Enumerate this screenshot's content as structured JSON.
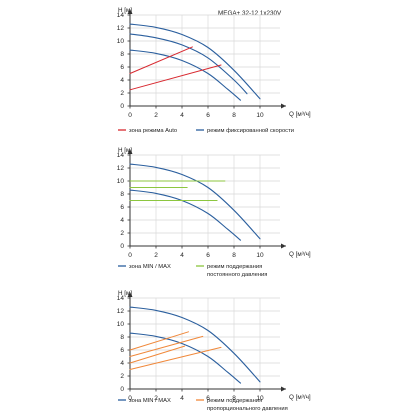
{
  "title": "MEGA+ 32-12 1x230V",
  "colors": {
    "curve": "#2b5f9e",
    "auto": "#d8282f",
    "const": "#8cc63f",
    "prop": "#f0883a",
    "grid": "#d9d9d9",
    "axis": "#333333"
  },
  "chart_data": [
    {
      "type": "line",
      "ylabel": "H [м]",
      "xlabel": "Q [м³/ч]",
      "xlim": [
        0,
        12
      ],
      "ylim": [
        0,
        14
      ],
      "xticks": [
        0,
        2,
        4,
        6,
        8,
        10
      ],
      "yticks": [
        0,
        2,
        4,
        6,
        8,
        10,
        12,
        14
      ],
      "grid": true,
      "series": [
        {
          "role": "curve",
          "points": [
            [
              0,
              12.6
            ],
            [
              2,
              12.1
            ],
            [
              4,
              11.0
            ],
            [
              6,
              9.0
            ],
            [
              8,
              5.5
            ],
            [
              10,
              1.1
            ]
          ]
        },
        {
          "role": "curve",
          "points": [
            [
              0,
              11.1
            ],
            [
              2,
              10.5
            ],
            [
              4,
              9.4
            ],
            [
              6,
              7.4
            ],
            [
              8,
              4.0
            ],
            [
              9,
              1.9
            ]
          ]
        },
        {
          "role": "curve",
          "points": [
            [
              0,
              8.6
            ],
            [
              2,
              8.1
            ],
            [
              4,
              7.0
            ],
            [
              6,
              5.0
            ],
            [
              7.5,
              2.6
            ],
            [
              8.5,
              0.9
            ]
          ]
        },
        {
          "role": "auto",
          "points": [
            [
              0,
              5.0
            ],
            [
              4.8,
              9.1
            ]
          ]
        },
        {
          "role": "auto",
          "points": [
            [
              0,
              2.5
            ],
            [
              7,
              6.3
            ]
          ]
        }
      ],
      "legend": [
        {
          "role": "auto",
          "label": "зона режима Auto"
        },
        {
          "role": "curve",
          "label": "режим фиксированной скорости"
        }
      ]
    },
    {
      "type": "line",
      "ylabel": "H [м]",
      "xlabel": "Q [м³/ч]",
      "xlim": [
        0,
        12
      ],
      "ylim": [
        0,
        14
      ],
      "xticks": [
        0,
        2,
        4,
        6,
        8,
        10
      ],
      "yticks": [
        0,
        2,
        4,
        6,
        8,
        10,
        12,
        14
      ],
      "grid": true,
      "series": [
        {
          "role": "curve",
          "points": [
            [
              0,
              12.6
            ],
            [
              2,
              12.1
            ],
            [
              4,
              11.0
            ],
            [
              6,
              9.0
            ],
            [
              8,
              5.5
            ],
            [
              10,
              1.1
            ]
          ]
        },
        {
          "role": "curve",
          "points": [
            [
              0,
              8.6
            ],
            [
              2,
              8.1
            ],
            [
              4,
              7.0
            ],
            [
              6,
              5.0
            ],
            [
              7.5,
              2.6
            ],
            [
              8.5,
              0.9
            ]
          ]
        },
        {
          "role": "const",
          "points": [
            [
              0,
              10
            ],
            [
              7.3,
              10
            ]
          ]
        },
        {
          "role": "const",
          "points": [
            [
              0,
              9
            ],
            [
              4.4,
              9
            ]
          ]
        },
        {
          "role": "const",
          "points": [
            [
              0,
              7
            ],
            [
              6.7,
              7
            ]
          ]
        }
      ],
      "legend": [
        {
          "role": "curve",
          "label": "зона MIN / MAX"
        },
        {
          "role": "const",
          "label": "режим поддержания",
          "label2": "постоянного давления"
        }
      ]
    },
    {
      "type": "line",
      "ylabel": "H [м]",
      "xlabel": "Q [м³/ч]",
      "xlim": [
        0,
        12
      ],
      "ylim": [
        0,
        14
      ],
      "xticks": [
        0,
        2,
        4,
        6,
        8,
        10
      ],
      "yticks": [
        0,
        2,
        4,
        6,
        8,
        10,
        12,
        14
      ],
      "grid": true,
      "series": [
        {
          "role": "curve",
          "points": [
            [
              0,
              12.6
            ],
            [
              2,
              12.1
            ],
            [
              4,
              11.0
            ],
            [
              6,
              9.0
            ],
            [
              8,
              5.5
            ],
            [
              10,
              1.1
            ]
          ]
        },
        {
          "role": "curve",
          "points": [
            [
              0,
              8.6
            ],
            [
              2,
              8.1
            ],
            [
              4,
              7.0
            ],
            [
              6,
              5.0
            ],
            [
              7.5,
              2.6
            ],
            [
              8.5,
              0.9
            ]
          ]
        },
        {
          "role": "prop",
          "points": [
            [
              0,
              6.0
            ],
            [
              4.5,
              8.8
            ]
          ]
        },
        {
          "role": "prop",
          "points": [
            [
              0,
              5.0
            ],
            [
              5.6,
              8.1
            ]
          ]
        },
        {
          "role": "prop",
          "points": [
            [
              0,
              4.0
            ],
            [
              4.2,
              6.6
            ]
          ]
        },
        {
          "role": "prop",
          "points": [
            [
              0,
              3.0
            ],
            [
              7.0,
              6.4
            ]
          ]
        }
      ],
      "legend": [
        {
          "role": "curve",
          "label": "зона MIN / MAX"
        },
        {
          "role": "prop",
          "label": "режим поддержания",
          "label2": "пропорционального давления"
        }
      ]
    }
  ]
}
